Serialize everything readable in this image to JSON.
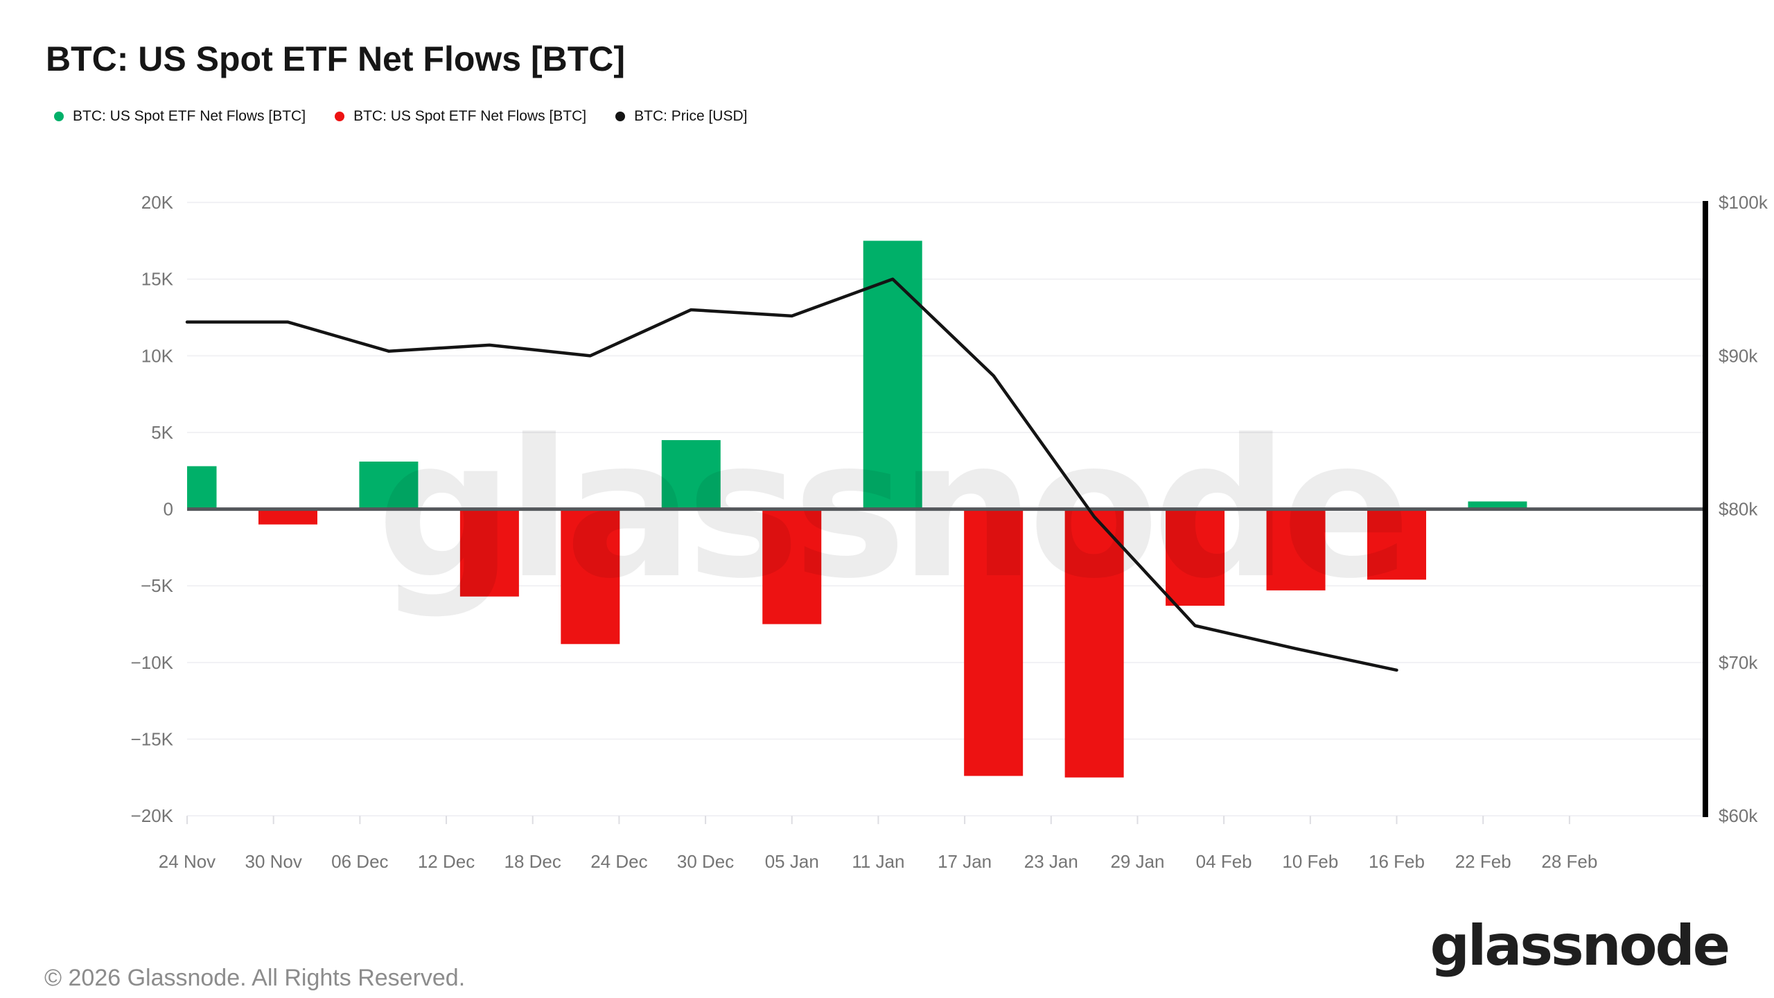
{
  "title": "BTC: US Spot ETF Net Flows [BTC]",
  "legend": [
    {
      "label": "BTC: US Spot ETF Net Flows [BTC]",
      "color": "#00b069",
      "series": "netflow-positive"
    },
    {
      "label": "BTC: US Spot ETF Net Flows [BTC]",
      "color": "#ed1212",
      "series": "netflow-negative"
    },
    {
      "label": "BTC: Price [USD]",
      "color": "#141414",
      "series": "price"
    }
  ],
  "watermark": "glassnode",
  "footer": {
    "copyright": "© 2026 Glassnode. All Rights Reserved.",
    "brand": "glassnode"
  },
  "colors": {
    "positive_flow": "#00b069",
    "negative_flow": "#ed1212",
    "price_line": "#141414",
    "grid_line": "#f1f1f4",
    "zero_line": "#54575b",
    "axis_text": "#757575",
    "right_axis_line": "#000000",
    "background": "#ffffff"
  },
  "chart_data": {
    "type": "bar",
    "subtype": "bar+line dual axis",
    "title": "BTC: US Spot ETF Net Flows [BTC]",
    "grid": true,
    "legend_position": "top-left",
    "x_axis": {
      "tick_labels": [
        "24 Nov",
        "30 Nov",
        "06 Dec",
        "12 Dec",
        "18 Dec",
        "24 Dec",
        "30 Dec",
        "05 Jan",
        "11 Jan",
        "17 Jan",
        "23 Jan",
        "29 Jan",
        "04 Feb",
        "10 Feb",
        "16 Feb",
        "22 Feb",
        "28 Feb"
      ],
      "tick_days": [
        0,
        6,
        12,
        18,
        24,
        30,
        36,
        42,
        48,
        54,
        60,
        66,
        72,
        78,
        84,
        90,
        96
      ]
    },
    "left_axis": {
      "title": "BTC: US Spot ETF Net Flows [BTC]",
      "tick_labels": [
        "20K",
        "15K",
        "10K",
        "5K",
        "0",
        "−5K",
        "−10K",
        "−15K",
        "−20K"
      ],
      "tick_values": [
        20000,
        15000,
        10000,
        5000,
        0,
        -5000,
        -10000,
        -15000,
        -20000
      ],
      "range": [
        -20000,
        20000
      ]
    },
    "right_axis": {
      "title": "BTC: Price [USD]",
      "tick_labels": [
        "$100k",
        "$90k",
        "$80k",
        "$70k",
        "$60k"
      ],
      "tick_values": [
        100000,
        90000,
        80000,
        70000,
        60000
      ],
      "range": [
        60000,
        100000
      ]
    },
    "series": [
      {
        "name": "BTC: US Spot ETF Net Flows [BTC]",
        "type": "bar",
        "unit": "BTC",
        "points": [
          {
            "date": "24 Nov",
            "day": 0,
            "value": 2800
          },
          {
            "date": "01 Dec",
            "day": 7,
            "value": -1000
          },
          {
            "date": "08 Dec",
            "day": 14,
            "value": 3100
          },
          {
            "date": "15 Dec",
            "day": 21,
            "value": -5700
          },
          {
            "date": "22 Dec",
            "day": 28,
            "value": -8800
          },
          {
            "date": "29 Dec",
            "day": 35,
            "value": 4500
          },
          {
            "date": "05 Jan",
            "day": 42,
            "value": -7500
          },
          {
            "date": "12 Jan",
            "day": 49,
            "value": 17500
          },
          {
            "date": "19 Jan",
            "day": 56,
            "value": -17400
          },
          {
            "date": "26 Jan",
            "day": 63,
            "value": -17500
          },
          {
            "date": "02 Feb",
            "day": 70,
            "value": -6300
          },
          {
            "date": "09 Feb",
            "day": 77,
            "value": -5300
          },
          {
            "date": "16 Feb",
            "day": 84,
            "value": -4600
          },
          {
            "date": "23 Feb",
            "day": 91,
            "value": 500
          }
        ]
      },
      {
        "name": "BTC: Price [USD]",
        "type": "line",
        "unit": "USD",
        "points": [
          {
            "date": "24 Nov",
            "day": 0,
            "value": 92200
          },
          {
            "date": "01 Dec",
            "day": 7,
            "value": 92200
          },
          {
            "date": "08 Dec",
            "day": 14,
            "value": 90300
          },
          {
            "date": "15 Dec",
            "day": 21,
            "value": 90700
          },
          {
            "date": "22 Dec",
            "day": 28,
            "value": 90000
          },
          {
            "date": "29 Dec",
            "day": 35,
            "value": 93000
          },
          {
            "date": "05 Jan",
            "day": 42,
            "value": 92600
          },
          {
            "date": "12 Jan",
            "day": 49,
            "value": 95000
          },
          {
            "date": "19 Jan",
            "day": 56,
            "value": 88700
          },
          {
            "date": "26 Jan",
            "day": 63,
            "value": 79500
          },
          {
            "date": "02 Feb",
            "day": 70,
            "value": 72400
          },
          {
            "date": "09 Feb",
            "day": 77,
            "value": 70900
          },
          {
            "date": "16 Feb",
            "day": 84,
            "value": 69500
          }
        ]
      }
    ]
  }
}
